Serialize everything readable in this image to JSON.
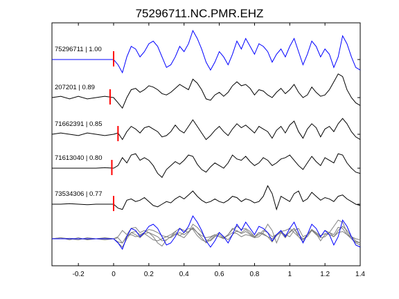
{
  "chart_data": {
    "type": "line",
    "title": "75296711.NC.PMR.EHZ",
    "xlim": [
      -0.35,
      1.4
    ],
    "x_ticks": [
      -0.2,
      0,
      0.2,
      0.4,
      0.6,
      0.8,
      1,
      1.2,
      1.4
    ],
    "x_tick_labels": [
      "-0.2",
      "0",
      "0.2",
      "0.4",
      "0.6",
      "0.8",
      "1",
      "1.2",
      "1.4"
    ],
    "grid": false,
    "colors": {
      "primary": "#0000ff",
      "secondary": "#000000",
      "overlay": "#808080",
      "pick": "#ff0000"
    },
    "x": [
      -0.35,
      -0.3,
      -0.25,
      -0.2,
      -0.15,
      -0.1,
      -0.05,
      0,
      0.025,
      0.05,
      0.075,
      0.1,
      0.125,
      0.15,
      0.175,
      0.2,
      0.225,
      0.25,
      0.275,
      0.3,
      0.325,
      0.35,
      0.375,
      0.4,
      0.425,
      0.45,
      0.475,
      0.5,
      0.525,
      0.55,
      0.575,
      0.6,
      0.625,
      0.65,
      0.675,
      0.7,
      0.725,
      0.75,
      0.775,
      0.8,
      0.825,
      0.85,
      0.875,
      0.9,
      0.925,
      0.95,
      0.975,
      1,
      1.025,
      1.05,
      1.075,
      1.1,
      1.125,
      1.15,
      1.175,
      1.2,
      1.225,
      1.25,
      1.275,
      1.3,
      1.325,
      1.35,
      1.375,
      1.4
    ],
    "series": [
      {
        "label": "75296711 | 1.00",
        "pick_time": 0.0,
        "color": "#0000ff",
        "values": [
          0,
          0,
          0,
          0,
          0,
          0,
          0,
          0,
          -0.2,
          -0.5,
          0.1,
          0.5,
          0.4,
          0.1,
          0.3,
          0.6,
          0.7,
          0.5,
          0.1,
          -0.3,
          -0.2,
          0.1,
          0.5,
          0.3,
          0.6,
          1.1,
          0.8,
          0.4,
          -0.1,
          -0.4,
          -0.1,
          0.3,
          0.1,
          -0.2,
          0.2,
          0.7,
          0.4,
          0.8,
          0.5,
          0.2,
          0.6,
          0.5,
          0.3,
          -0.1,
          0.2,
          0.4,
          0.1,
          0.5,
          0.8,
          0.3,
          -0.2,
          0.2,
          0.7,
          0.5,
          0.1,
          0.4,
          0.2,
          -0.3,
          0.1,
          0.9,
          0.6,
          0.1,
          -0.3,
          -0.4
        ]
      },
      {
        "label": "207201 | 0.89",
        "pick_time": -0.02,
        "color": "#000000",
        "values": [
          0,
          0.05,
          -0.05,
          0.05,
          -0.05,
          0,
          0.05,
          0,
          -0.2,
          -0.4,
          0,
          0.3,
          0.35,
          0.2,
          0.3,
          0.45,
          0.4,
          0.3,
          0.15,
          0.1,
          0.2,
          0.35,
          0.5,
          0.4,
          0.3,
          0.7,
          0.55,
          0.3,
          -0.05,
          -0.1,
          0.1,
          0.2,
          0.05,
          0.2,
          0.45,
          0.6,
          0.45,
          0.5,
          0.35,
          0.1,
          0.3,
          0.25,
          0.1,
          0,
          0.2,
          0.35,
          0.15,
          0.3,
          0.5,
          0.2,
          0,
          0.1,
          0.4,
          0.2,
          0.05,
          0.1,
          0.3,
          0.6,
          0.9,
          0.8,
          0.3,
          0,
          -0.2,
          -0.3
        ]
      },
      {
        "label": "71662391 | 0.85",
        "pick_time": 0.025,
        "color": "#000000",
        "values": [
          0,
          0.05,
          0,
          -0.05,
          0.05,
          0,
          -0.05,
          0,
          0.05,
          -0.2,
          0.1,
          0.3,
          0.2,
          0.05,
          0.25,
          0.3,
          0.2,
          0.1,
          -0.1,
          -0.05,
          0.1,
          0.35,
          0.15,
          0.05,
          0.3,
          0.55,
          0.3,
          0.05,
          -0.2,
          -0.05,
          0.15,
          0.3,
          0.1,
          -0.05,
          0.2,
          0.4,
          0.25,
          0.35,
          0.2,
          0.05,
          0.3,
          0.2,
          0.1,
          -0.15,
          0.15,
          0.3,
          0.05,
          0.35,
          0.5,
          0.1,
          -0.15,
          0.2,
          0.4,
          0.25,
          -0.1,
          0.2,
          0.3,
          0.1,
          0.4,
          0.6,
          0.4,
          0.1,
          -0.1,
          -0.2
        ]
      },
      {
        "label": "71613040 | 0.80",
        "pick_time": -0.01,
        "color": "#000000",
        "values": [
          0,
          0,
          0,
          0,
          0,
          0,
          0.02,
          0,
          0.1,
          0.4,
          0.2,
          0.5,
          0.55,
          0.3,
          0.4,
          0.3,
          0.1,
          -0.2,
          -0.35,
          -0.05,
          0.1,
          0.25,
          0.15,
          0.3,
          0.5,
          0.45,
          0.15,
          -0.05,
          -0.15,
          0.05,
          0.2,
          0.1,
          0,
          0.2,
          0.5,
          0.35,
          0.3,
          0.45,
          0.25,
          0.1,
          0.2,
          0.4,
          0.3,
          0.1,
          0.2,
          0.35,
          0.4,
          0.5,
          0.3,
          0.1,
          -0.05,
          0.2,
          0.45,
          0.25,
          0.1,
          0.4,
          0.3,
          0.2,
          0.55,
          0.5,
          0.2,
          0,
          -0.15,
          -0.2
        ]
      },
      {
        "label": "73534306 | 0.77",
        "pick_time": 0.0,
        "color": "#000000",
        "values": [
          0,
          0,
          0.02,
          0,
          -0.02,
          0,
          0,
          0,
          -0.15,
          -0.2,
          0.15,
          0.2,
          0.1,
          0.15,
          0.25,
          0.1,
          -0.05,
          -0.1,
          0,
          0.1,
          0.05,
          0.2,
          0.3,
          0.2,
          0.35,
          0.5,
          0.3,
          0.15,
          0.05,
          0.1,
          0.2,
          0.1,
          0.05,
          0.15,
          0.3,
          0.25,
          0.1,
          0.2,
          0.15,
          0.05,
          0.1,
          0.3,
          0.7,
          0.4,
          -0.2,
          0.3,
          0.2,
          0.1,
          0.4,
          0.5,
          0.1,
          0.2,
          0.45,
          0.3,
          0.15,
          0.25,
          0.2,
          0.1,
          0.3,
          0.35,
          0.2,
          0.1,
          0,
          -0.05
        ]
      }
    ],
    "overlay": {
      "label": "stack",
      "description": "all traces overlaid at bottom"
    }
  }
}
